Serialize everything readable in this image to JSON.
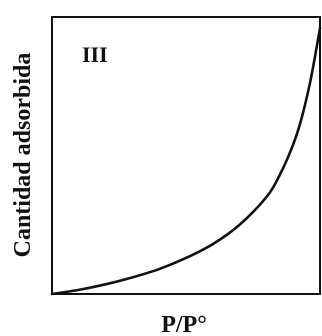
{
  "chart_data": {
    "type": "line",
    "title": "",
    "annotation": "III",
    "xlabel": "P/P°",
    "ylabel": "Cantidad adsorbida",
    "xlim": [
      0,
      1
    ],
    "ylim": [
      0,
      1
    ],
    "grid": false,
    "legend": "none",
    "axis_ticks": false,
    "series": [
      {
        "x": [
          0.0,
          0.1,
          0.2,
          0.3,
          0.4,
          0.5,
          0.6,
          0.7,
          0.8,
          0.85,
          0.9,
          0.93,
          0.96,
          0.98,
          1.0
        ],
        "y": [
          0.0,
          0.015,
          0.035,
          0.06,
          0.09,
          0.13,
          0.18,
          0.25,
          0.35,
          0.43,
          0.54,
          0.63,
          0.75,
          0.85,
          0.96
        ],
        "color": "#111111"
      }
    ]
  }
}
